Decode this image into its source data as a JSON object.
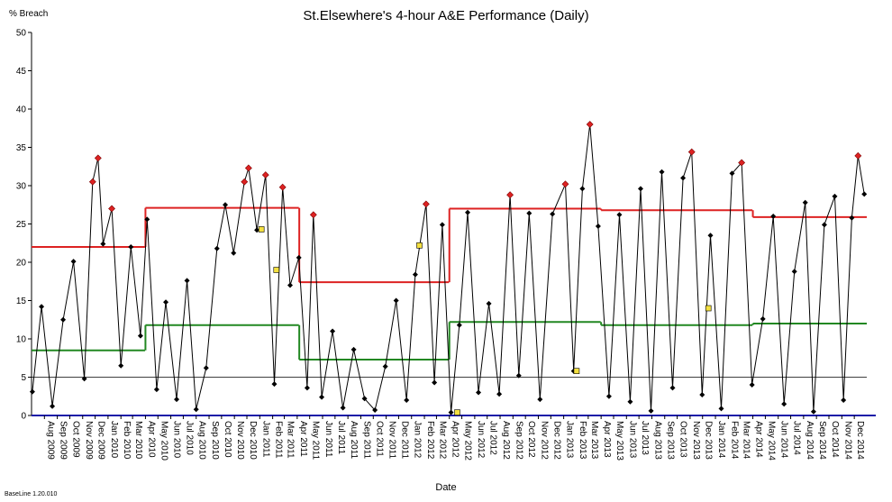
{
  "chart_data": {
    "type": "line",
    "title": "St.Elsewhere's 4-hour A&E Performance (Daily)",
    "ylabel": "% Breach",
    "xlabel": "Date",
    "footer": "BaseLine 1.20.010",
    "ylim": [
      0,
      50
    ],
    "y_ticks": [
      0,
      5,
      10,
      15,
      20,
      25,
      30,
      35,
      40,
      45,
      50
    ],
    "x_range": [
      "2009-07-01",
      "2014-12-31"
    ],
    "x_tick_labels": [
      "Aug 2009",
      "Sep 2009",
      "Oct 2009",
      "Nov 2009",
      "Dec 2009",
      "Jan 2010",
      "Feb 2010",
      "Mar 2010",
      "Apr 2010",
      "May 2010",
      "Jun 2010",
      "Jul 2010",
      "Aug 2010",
      "Sep 2010",
      "Oct 2010",
      "Nov 2010",
      "Dec 2010",
      "Jan 2011",
      "Feb 2011",
      "Mar 2011",
      "Apr 2011",
      "May 2011",
      "Jun 2011",
      "Jul 2011",
      "Aug 2011",
      "Sep 2011",
      "Oct 2011",
      "Nov 2011",
      "Dec 2011",
      "Jan 2012",
      "Feb 2012",
      "Mar 2012",
      "Apr 2012",
      "May 2012",
      "Jun 2012",
      "Jul 2012",
      "Aug 2012",
      "Sep 2012",
      "Oct 2012",
      "Nov 2012",
      "Dec 2012",
      "Jan 2013",
      "Feb 2013",
      "Mar 2013",
      "Apr 2013",
      "May 2013",
      "Jun 2013",
      "Jul 2013",
      "Aug 2013",
      "Sep 2013",
      "Oct 2013",
      "Nov 2013",
      "Dec 2013",
      "Jan 2014",
      "Feb 2014",
      "Mar 2014",
      "Apr 2014",
      "May 2014",
      "Jun 2014",
      "Jul 2014",
      "Aug 2014",
      "Sep 2014",
      "Oct 2014",
      "Nov 2014",
      "Dec 2014"
    ],
    "grid": false,
    "target_line": 5,
    "baseline_value": 0,
    "series": [
      {
        "color": "#000000",
        "marker": "diamond",
        "values": [
          {
            "date": "2009-07-03",
            "y": 3.1
          },
          {
            "date": "2009-07-25",
            "y": 14.2
          },
          {
            "date": "2009-08-20",
            "y": 1.2
          },
          {
            "date": "2009-09-15",
            "y": 12.5
          },
          {
            "date": "2009-10-10",
            "y": 20.1
          },
          {
            "date": "2009-11-05",
            "y": 4.8
          },
          {
            "date": "2009-11-25",
            "y": 30.5
          },
          {
            "date": "2009-12-08",
            "y": 33.6
          },
          {
            "date": "2009-12-20",
            "y": 22.4
          },
          {
            "date": "2010-01-10",
            "y": 27.0
          },
          {
            "date": "2010-02-01",
            "y": 6.5
          },
          {
            "date": "2010-02-25",
            "y": 22.0
          },
          {
            "date": "2010-03-20",
            "y": 10.4
          },
          {
            "date": "2010-04-05",
            "y": 25.6
          },
          {
            "date": "2010-04-28",
            "y": 3.4
          },
          {
            "date": "2010-05-20",
            "y": 14.8
          },
          {
            "date": "2010-06-15",
            "y": 2.1
          },
          {
            "date": "2010-07-10",
            "y": 17.6
          },
          {
            "date": "2010-08-01",
            "y": 0.8
          },
          {
            "date": "2010-08-25",
            "y": 6.2
          },
          {
            "date": "2010-09-20",
            "y": 21.8
          },
          {
            "date": "2010-10-10",
            "y": 27.5
          },
          {
            "date": "2010-10-30",
            "y": 21.2
          },
          {
            "date": "2010-11-25",
            "y": 30.5
          },
          {
            "date": "2010-12-05",
            "y": 32.3
          },
          {
            "date": "2010-12-25",
            "y": 24.2
          },
          {
            "date": "2011-01-15",
            "y": 31.4
          },
          {
            "date": "2011-02-05",
            "y": 4.1
          },
          {
            "date": "2011-02-25",
            "y": 29.8
          },
          {
            "date": "2011-03-15",
            "y": 17.0
          },
          {
            "date": "2011-04-05",
            "y": 20.6
          },
          {
            "date": "2011-04-25",
            "y": 3.6
          },
          {
            "date": "2011-05-10",
            "y": 26.2
          },
          {
            "date": "2011-05-30",
            "y": 2.4
          },
          {
            "date": "2011-06-25",
            "y": 11.0
          },
          {
            "date": "2011-07-20",
            "y": 1.0
          },
          {
            "date": "2011-08-15",
            "y": 8.6
          },
          {
            "date": "2011-09-10",
            "y": 2.2
          },
          {
            "date": "2011-10-05",
            "y": 0.7
          },
          {
            "date": "2011-10-30",
            "y": 6.4
          },
          {
            "date": "2011-11-25",
            "y": 15.0
          },
          {
            "date": "2011-12-20",
            "y": 2.0
          },
          {
            "date": "2012-01-10",
            "y": 18.4
          },
          {
            "date": "2012-02-05",
            "y": 27.6
          },
          {
            "date": "2012-02-25",
            "y": 4.3
          },
          {
            "date": "2012-03-15",
            "y": 24.9
          },
          {
            "date": "2012-04-05",
            "y": 0.4
          },
          {
            "date": "2012-04-25",
            "y": 11.8
          },
          {
            "date": "2012-05-15",
            "y": 26.5
          },
          {
            "date": "2012-06-10",
            "y": 3.0
          },
          {
            "date": "2012-07-05",
            "y": 14.6
          },
          {
            "date": "2012-07-30",
            "y": 2.8
          },
          {
            "date": "2012-08-25",
            "y": 28.8
          },
          {
            "date": "2012-09-15",
            "y": 5.2
          },
          {
            "date": "2012-10-10",
            "y": 26.4
          },
          {
            "date": "2012-11-05",
            "y": 2.1
          },
          {
            "date": "2012-12-05",
            "y": 26.3
          },
          {
            "date": "2013-01-05",
            "y": 30.2
          },
          {
            "date": "2013-01-25",
            "y": 5.8
          },
          {
            "date": "2013-02-15",
            "y": 29.6
          },
          {
            "date": "2013-03-05",
            "y": 38.0
          },
          {
            "date": "2013-03-25",
            "y": 24.7
          },
          {
            "date": "2013-04-20",
            "y": 2.5
          },
          {
            "date": "2013-05-15",
            "y": 26.2
          },
          {
            "date": "2013-06-10",
            "y": 1.8
          },
          {
            "date": "2013-07-05",
            "y": 29.6
          },
          {
            "date": "2013-07-30",
            "y": 0.6
          },
          {
            "date": "2013-08-25",
            "y": 31.8
          },
          {
            "date": "2013-09-20",
            "y": 3.6
          },
          {
            "date": "2013-10-15",
            "y": 31.0
          },
          {
            "date": "2013-11-05",
            "y": 34.4
          },
          {
            "date": "2013-11-30",
            "y": 2.7
          },
          {
            "date": "2013-12-20",
            "y": 23.5
          },
          {
            "date": "2014-01-15",
            "y": 0.9
          },
          {
            "date": "2014-02-10",
            "y": 31.6
          },
          {
            "date": "2014-03-05",
            "y": 33.0
          },
          {
            "date": "2014-03-30",
            "y": 4.0
          },
          {
            "date": "2014-04-25",
            "y": 12.6
          },
          {
            "date": "2014-05-20",
            "y": 26.0
          },
          {
            "date": "2014-06-15",
            "y": 1.5
          },
          {
            "date": "2014-07-10",
            "y": 18.8
          },
          {
            "date": "2014-08-05",
            "y": 27.8
          },
          {
            "date": "2014-08-25",
            "y": 0.5
          },
          {
            "date": "2014-09-20",
            "y": 24.9
          },
          {
            "date": "2014-10-15",
            "y": 28.6
          },
          {
            "date": "2014-11-05",
            "y": 2.0
          },
          {
            "date": "2014-11-25",
            "y": 25.8
          },
          {
            "date": "2014-12-10",
            "y": 33.9
          },
          {
            "date": "2014-12-25",
            "y": 28.9
          }
        ]
      },
      {
        "name": "",
        "color": "#dd2222",
        "style": "step",
        "segments": [
          {
            "from": "2009-07-01",
            "to": "2010-03-31",
            "y": 22.0
          },
          {
            "from": "2010-04-01",
            "to": "2011-04-05",
            "y": 27.1
          },
          {
            "from": "2011-04-06",
            "to": "2012-03-31",
            "y": 17.4
          },
          {
            "from": "2012-04-01",
            "to": "2013-03-31",
            "y": 27.0
          },
          {
            "from": "2013-04-01",
            "to": "2014-03-31",
            "y": 26.8
          },
          {
            "from": "2014-04-01",
            "to": "2014-12-31",
            "y": 25.9
          }
        ]
      },
      {
        "name": "",
        "color": "#228822",
        "style": "step",
        "segments": [
          {
            "from": "2009-07-01",
            "to": "2010-03-31",
            "y": 8.5
          },
          {
            "from": "2010-04-01",
            "to": "2011-04-05",
            "y": 11.8
          },
          {
            "from": "2011-04-06",
            "to": "2012-03-31",
            "y": 7.3
          },
          {
            "from": "2012-04-01",
            "to": "2013-03-31",
            "y": 12.2
          },
          {
            "from": "2013-04-01",
            "to": "2014-03-31",
            "y": 11.8
          },
          {
            "from": "2014-04-01",
            "to": "2014-12-31",
            "y": 12.0
          }
        ]
      }
    ],
    "highlighted_points": [
      {
        "date": "2009-11-25",
        "y": 30.5
      },
      {
        "date": "2009-12-08",
        "y": 33.6
      },
      {
        "date": "2010-01-10",
        "y": 27.0
      },
      {
        "date": "2010-11-25",
        "y": 30.5
      },
      {
        "date": "2010-12-05",
        "y": 32.3
      },
      {
        "date": "2011-01-15",
        "y": 31.4
      },
      {
        "date": "2011-02-25",
        "y": 29.8
      },
      {
        "date": "2011-05-10",
        "y": 26.2
      },
      {
        "date": "2012-02-05",
        "y": 27.6
      },
      {
        "date": "2012-08-25",
        "y": 28.8
      },
      {
        "date": "2013-01-05",
        "y": 30.2
      },
      {
        "date": "2013-03-05",
        "y": 38.0
      },
      {
        "date": "2013-11-05",
        "y": 34.4
      },
      {
        "date": "2014-03-05",
        "y": 33.0
      },
      {
        "date": "2014-12-10",
        "y": 33.9
      }
    ],
    "marked_points": [
      {
        "date": "2011-01-05",
        "y": 24.3
      },
      {
        "date": "2011-02-10",
        "y": 19.0
      },
      {
        "date": "2012-01-20",
        "y": 22.2
      },
      {
        "date": "2012-04-20",
        "y": 0.4
      },
      {
        "date": "2013-02-01",
        "y": 5.8
      },
      {
        "date": "2013-12-15",
        "y": 14.0
      }
    ]
  }
}
